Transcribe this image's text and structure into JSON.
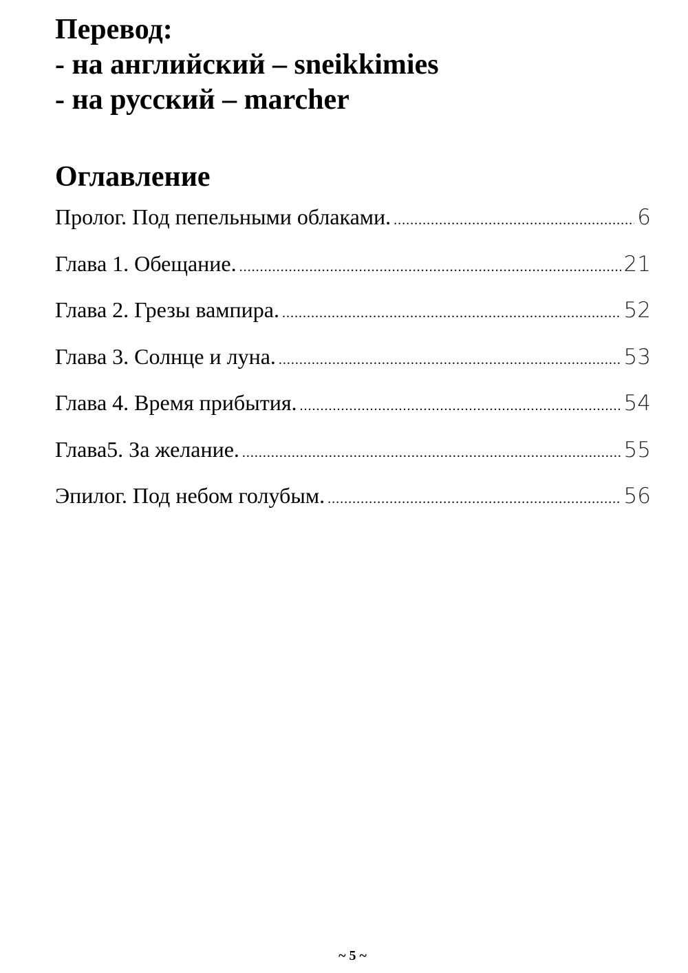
{
  "header": {
    "lines": [
      "Перевод:",
      "- на английский – sneikkimies",
      "- на русский – marcher"
    ]
  },
  "toc": {
    "title": "Оглавление",
    "entries": [
      {
        "label": "Пролог. Под пепельными облаками.",
        "page": "6"
      },
      {
        "label": "Глава 1. Обещание.",
        "page": "21"
      },
      {
        "label": "Глава 2. Грезы вампира.",
        "page": "52"
      },
      {
        "label": "Глава 3. Солнце и луна.",
        "page": "53"
      },
      {
        "label": "Глава 4. Время прибытия.",
        "page": "54"
      },
      {
        "label": "Глава5. За желание.",
        "page": "55"
      },
      {
        "label": "Эпилог. Под небом голубым.",
        "page": "56"
      }
    ]
  },
  "footer": {
    "page_number": "~ 5 ~"
  }
}
